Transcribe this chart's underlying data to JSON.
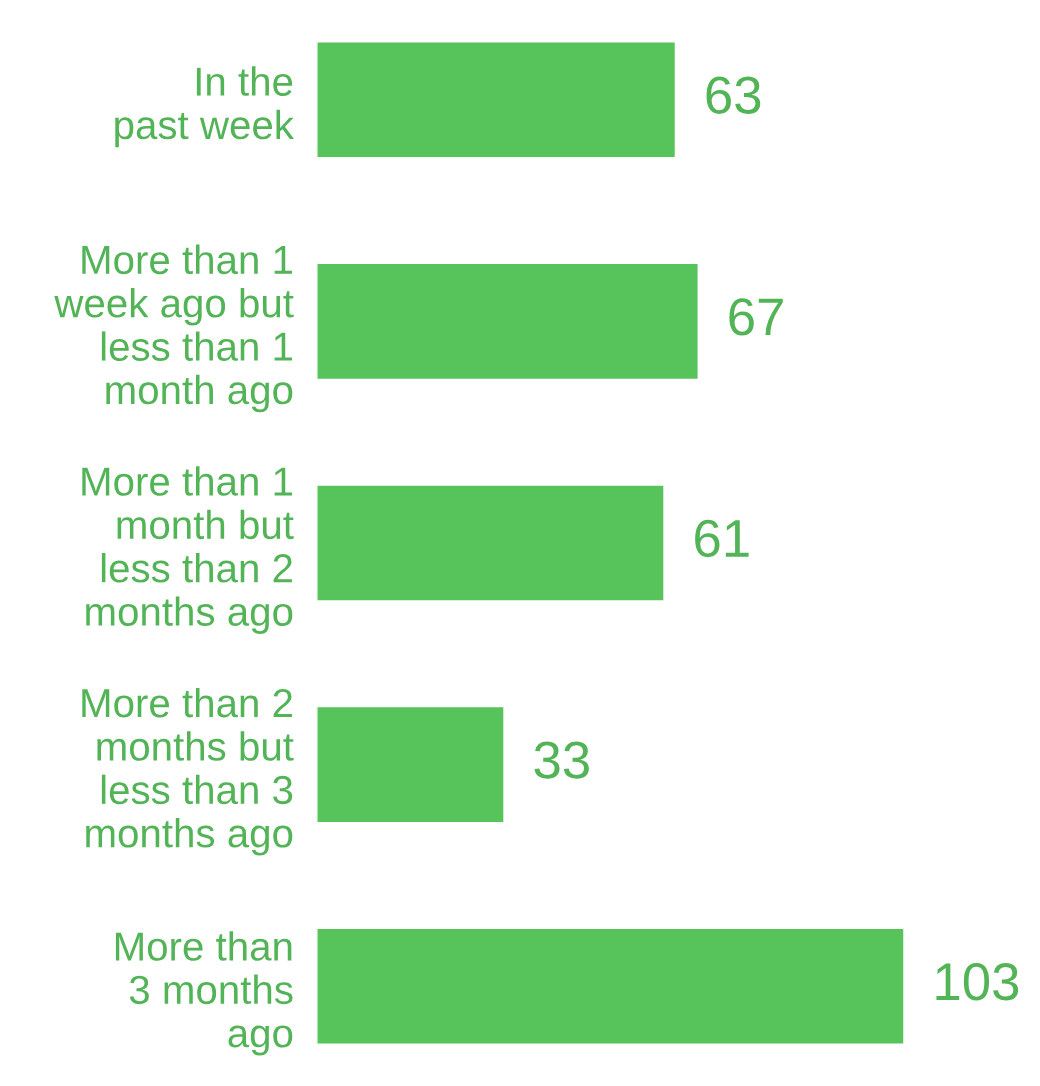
{
  "chart_data": {
    "type": "bar",
    "orientation": "horizontal",
    "categories": [
      "In the\npast week",
      "More than 1\nweek ago but\nless than 1\nmonth ago",
      "More than 1\nmonth but\nless than 2\nmonths ago",
      "More than 2\nmonths but\nless than 3\nmonths ago",
      "More than\n3 months\nago"
    ],
    "values": [
      63,
      67,
      61,
      33,
      103
    ],
    "color": "#56c45a",
    "data_labels": true
  }
}
